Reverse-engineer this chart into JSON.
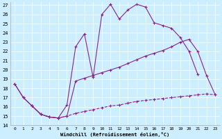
{
  "xlabel": "Windchill (Refroidissement éolien,°C)",
  "bg_color": "#cceeff",
  "line_color": "#882288",
  "xlim_min": -0.5,
  "xlim_max": 23.5,
  "ylim_min": 14,
  "ylim_max": 27.3,
  "xticks": [
    0,
    1,
    2,
    3,
    4,
    5,
    6,
    7,
    8,
    9,
    10,
    11,
    12,
    13,
    14,
    15,
    16,
    17,
    18,
    19,
    20,
    21,
    22,
    23
  ],
  "yticks": [
    14,
    15,
    16,
    17,
    18,
    19,
    20,
    21,
    22,
    23,
    24,
    25,
    26,
    27
  ],
  "line1_x": [
    0,
    1,
    2,
    3,
    4,
    5,
    6,
    7,
    8,
    9,
    10,
    11,
    12,
    13,
    14,
    15,
    16,
    17,
    18,
    19,
    20,
    21,
    22,
    23
  ],
  "line1_y": [
    18.5,
    17.0,
    16.1,
    15.2,
    14.9,
    14.8,
    15.0,
    18.8,
    19.1,
    19.4,
    19.7,
    20.0,
    20.3,
    20.7,
    21.1,
    21.5,
    21.8,
    22.1,
    22.5,
    23.0,
    23.3,
    22.0,
    19.4,
    17.3
  ],
  "line2_x": [
    0,
    1,
    2,
    3,
    4,
    5,
    6,
    7,
    8,
    9,
    10,
    11,
    12,
    13,
    14,
    15,
    16,
    17,
    18,
    19,
    20,
    21
  ],
  "line2_y": [
    18.5,
    17.0,
    16.1,
    15.2,
    14.9,
    14.8,
    16.2,
    22.5,
    23.9,
    19.2,
    26.0,
    27.1,
    25.5,
    26.5,
    27.1,
    26.8,
    25.1,
    24.8,
    24.5,
    23.5,
    22.0,
    19.5
  ],
  "line3_x": [
    2,
    3,
    4,
    5,
    6,
    7,
    8,
    9,
    10,
    11,
    12,
    13,
    14,
    15,
    16,
    17,
    18,
    19,
    20,
    21,
    22,
    23
  ],
  "line3_y": [
    16.1,
    15.2,
    14.9,
    14.8,
    15.0,
    15.3,
    15.5,
    15.7,
    15.9,
    16.1,
    16.2,
    16.4,
    16.6,
    16.7,
    16.8,
    16.9,
    17.0,
    17.1,
    17.2,
    17.3,
    17.4,
    17.3
  ]
}
